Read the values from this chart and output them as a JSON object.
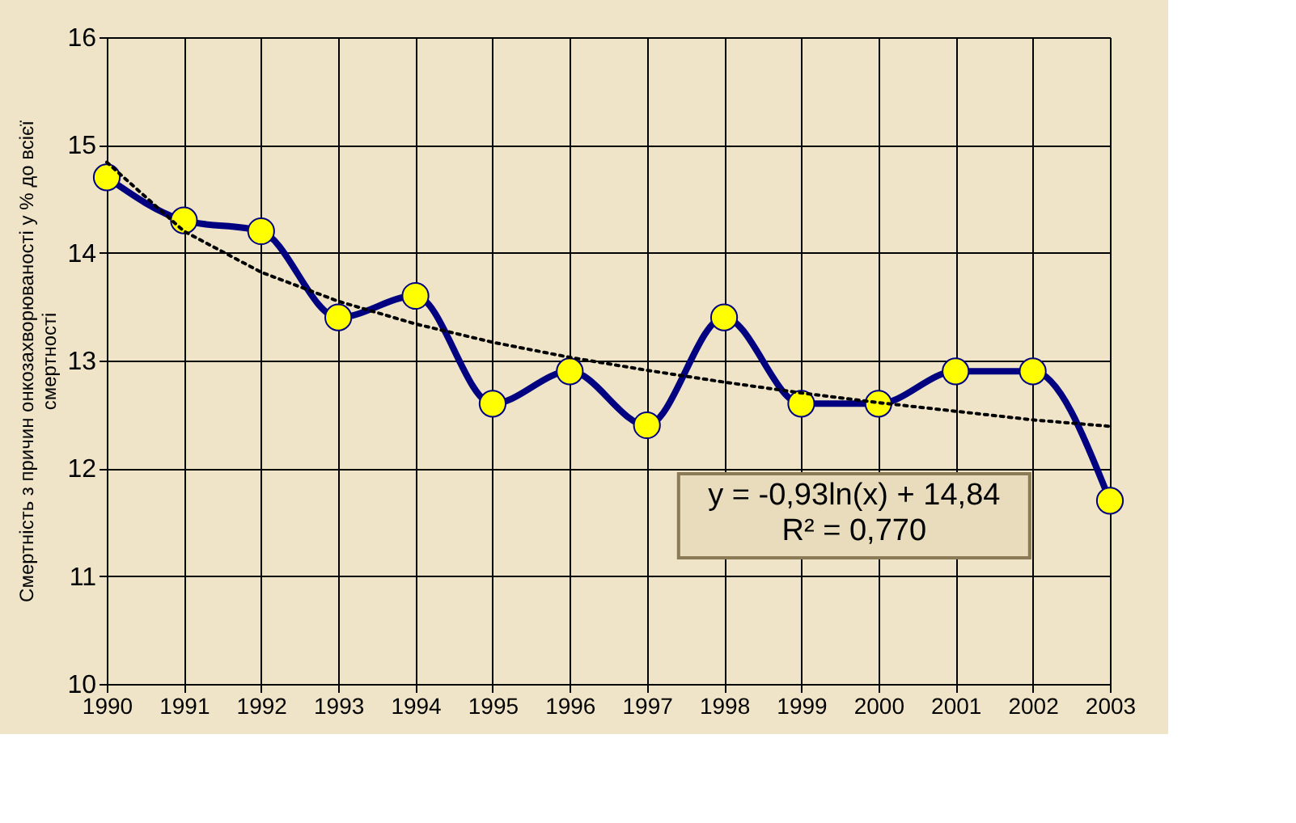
{
  "chart_data": {
    "type": "line",
    "ylabel": "Смертність з причин онкозахворюваності у % до всієї\nсмертності",
    "categories": [
      "1990",
      "1991",
      "1992",
      "1993",
      "1994",
      "1995",
      "1996",
      "1997",
      "1998",
      "1999",
      "2000",
      "2001",
      "2002",
      "2003"
    ],
    "series": [
      {
        "color": "#000080",
        "marker": "circle",
        "line_style": "solid",
        "values": [
          14.7,
          14.3,
          14.2,
          13.4,
          13.6,
          12.6,
          12.9,
          12.4,
          13.4,
          12.6,
          12.6,
          12.9,
          12.9,
          11.7
        ]
      },
      {
        "color": "#000000",
        "marker": "none",
        "line_style": "dotted",
        "values": [
          14.84,
          14.2,
          13.82,
          13.55,
          13.34,
          13.17,
          13.03,
          12.91,
          12.8,
          12.7,
          12.61,
          12.53,
          12.45,
          12.39
        ]
      }
    ],
    "ylim": [
      10,
      16
    ],
    "yticks": [
      10,
      11,
      12,
      13,
      14,
      15,
      16
    ],
    "grid": true,
    "annotations": [
      "y = -0,93ln(x) + 14,84",
      "R² = 0,770"
    ]
  }
}
